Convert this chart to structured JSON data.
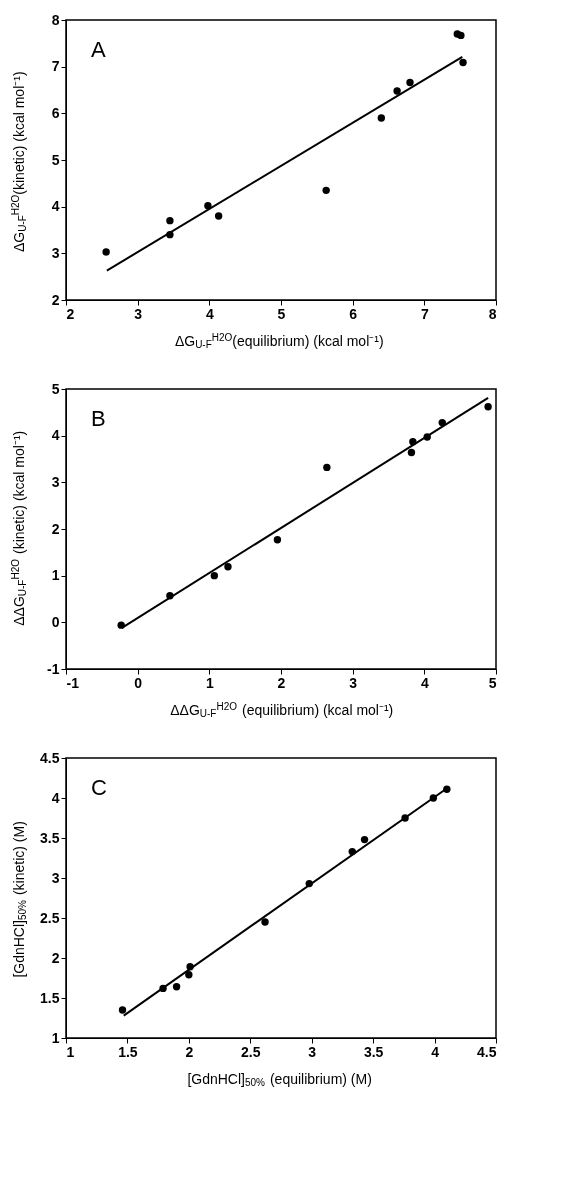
{
  "chart_data": [
    {
      "type": "scatter",
      "xlabel": "ΔG$_{U-F}$$^{H2O}$(equilibrium)  (kcal mol⁻¹)",
      "ylabel": "ΔG$_{U-F}$$^{H2O}$(kinetic)  (kcal mol⁻¹)",
      "annotations": [
        "A"
      ],
      "xlim": [
        2,
        8
      ],
      "ylim": [
        2,
        8
      ],
      "xticks": [
        2,
        3,
        4,
        5,
        6,
        7,
        8
      ],
      "yticks": [
        2,
        3,
        4,
        5,
        6,
        7,
        8
      ],
      "grid": false,
      "marker": "circle",
      "series": [
        {
          "type": "scatter",
          "color": "#000000",
          "x": [
            2.56,
            3.45,
            3.45,
            3.98,
            4.13,
            5.63,
            6.4,
            6.62,
            6.8,
            7.46,
            7.51,
            7.54
          ],
          "values": [
            3.03,
            3.7,
            3.4,
            4.02,
            3.8,
            4.35,
            5.9,
            6.48,
            6.66,
            7.7,
            7.67,
            7.09
          ]
        },
        {
          "type": "line",
          "color": "#000000",
          "marker": "none",
          "line_style": "solid",
          "x": [
            2.57,
            7.53
          ],
          "values": [
            2.63,
            7.21
          ]
        }
      ]
    },
    {
      "type": "scatter",
      "xlabel": "ΔΔG$_{U-F}$$^{H2O}$ (equilibrium) (kcal mol⁻¹)",
      "ylabel": "ΔΔG$_{U-F}$$^{H2O}$ (kinetic) (kcal mol⁻¹)",
      "annotations": [
        "B"
      ],
      "xlim": [
        -1,
        5
      ],
      "ylim": [
        -1,
        5
      ],
      "xticks": [
        -1,
        0,
        1,
        2,
        3,
        4,
        5
      ],
      "yticks": [
        -1,
        0,
        1,
        2,
        3,
        4,
        5
      ],
      "grid": false,
      "marker": "circle",
      "series": [
        {
          "type": "scatter",
          "color": "#000000",
          "x": [
            -0.23,
            0.45,
            1.07,
            1.26,
            1.95,
            2.64,
            3.82,
            3.84,
            4.04,
            4.25,
            4.89
          ],
          "values": [
            -0.06,
            0.57,
            1.0,
            1.19,
            1.77,
            3.32,
            3.64,
            3.87,
            3.97,
            4.28,
            4.62
          ]
        },
        {
          "type": "line",
          "color": "#000000",
          "marker": "none",
          "line_style": "solid",
          "x": [
            -0.22,
            4.89
          ],
          "values": [
            -0.12,
            4.81
          ]
        }
      ]
    },
    {
      "type": "scatter",
      "xlabel": "[GdnHCl]$_{50%}$ (equilibrium)  (M)",
      "ylabel": "[GdnHCl]$_{50%}$ (kinetic)  (M)",
      "annotations": [
        "C"
      ],
      "xlim": [
        1,
        4.5
      ],
      "ylim": [
        1,
        4.5
      ],
      "xticks": [
        1,
        1.5,
        2,
        2.5,
        3,
        3.5,
        4,
        4.5
      ],
      "yticks": [
        1,
        1.5,
        2,
        2.5,
        3,
        3.5,
        4,
        4.5
      ],
      "grid": false,
      "marker": "circle",
      "series": [
        {
          "type": "scatter",
          "color": "#000000",
          "x": [
            1.46,
            1.79,
            1.9,
            2.0,
            2.01,
            2.62,
            2.98,
            3.33,
            3.43,
            3.76,
            3.99,
            4.1
          ],
          "values": [
            1.35,
            1.62,
            1.64,
            1.79,
            1.89,
            2.45,
            2.93,
            3.33,
            3.48,
            3.75,
            4.0,
            4.11
          ]
        },
        {
          "type": "line",
          "color": "#000000",
          "marker": "none",
          "line_style": "solid",
          "x": [
            1.47,
            4.09
          ],
          "values": [
            1.28,
            4.11
          ]
        }
      ]
    }
  ]
}
